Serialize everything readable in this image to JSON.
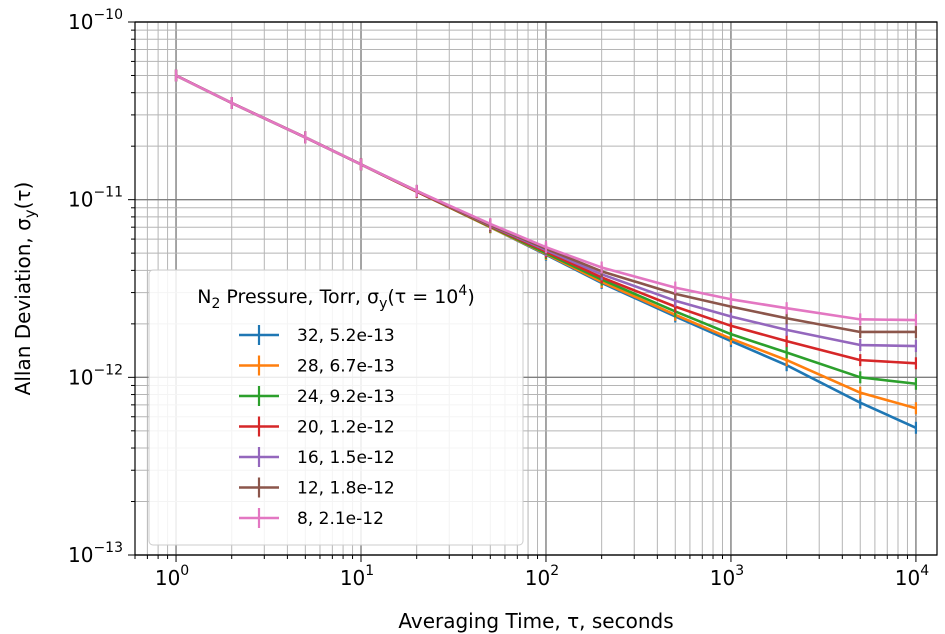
{
  "chart_data": {
    "type": "line",
    "xlabel": "Averaging Time, τ, seconds",
    "ylabel": "Allan Deviation, σy(τ)",
    "x_scale": "log",
    "y_scale": "log",
    "xlim": [
      0.6,
      13000
    ],
    "ylim": [
      1e-13,
      1e-10
    ],
    "grid": "major and minor",
    "x_tick_labels": [
      {
        "base": "10",
        "exp": "0",
        "value": 1
      },
      {
        "base": "10",
        "exp": "1",
        "value": 10
      },
      {
        "base": "10",
        "exp": "2",
        "value": 100
      },
      {
        "base": "10",
        "exp": "3",
        "value": 1000
      },
      {
        "base": "10",
        "exp": "4",
        "value": 10000
      }
    ],
    "y_tick_labels": [
      {
        "base": "10",
        "exp": "−13",
        "value": 1e-13
      },
      {
        "base": "10",
        "exp": "−12",
        "value": 1e-12
      },
      {
        "base": "10",
        "exp": "−11",
        "value": 1e-11
      },
      {
        "base": "10",
        "exp": "−10",
        "value": 1e-10
      }
    ],
    "legend": {
      "placement": "lower-left",
      "title": "N2 Pressure, Torr, σy(τ = 10^4)",
      "title_parts": {
        "n": "N",
        "n_sub": "2",
        "mid": " Pressure, Torr, ",
        "sigma": "σ",
        "sigma_sub": "y",
        "args": "(τ = 10",
        "args_sup": "4",
        "close": ")"
      }
    },
    "x": [
      1,
      2,
      5,
      10,
      20,
      50,
      100,
      200,
      500,
      1000,
      2000,
      5000,
      10000
    ],
    "series": [
      {
        "name": "32, 5.2e-13",
        "color": "#1f77b4",
        "values": [
          5e-11,
          3.5e-11,
          2.24e-11,
          1.58e-11,
          1.11e-11,
          7e-12,
          4.9e-12,
          3.4e-12,
          2.2e-12,
          1.6e-12,
          1.17e-12,
          7.2e-13,
          5.2e-13
        ]
      },
      {
        "name": "28, 6.7e-13",
        "color": "#ff7f0e",
        "values": [
          5e-11,
          3.5e-11,
          2.24e-11,
          1.58e-11,
          1.11e-11,
          7e-12,
          4.95e-12,
          3.45e-12,
          2.25e-12,
          1.65e-12,
          1.25e-12,
          8.2e-13,
          6.7e-13
        ]
      },
      {
        "name": "24, 9.2e-13",
        "color": "#2ca02c",
        "values": [
          5e-11,
          3.5e-11,
          2.24e-11,
          1.58e-11,
          1.11e-11,
          7.05e-12,
          5e-12,
          3.55e-12,
          2.35e-12,
          1.75e-12,
          1.38e-12,
          1e-12,
          9.2e-13
        ]
      },
      {
        "name": "20, 1.2e-12",
        "color": "#d62728",
        "values": [
          5e-11,
          3.5e-11,
          2.24e-11,
          1.58e-11,
          1.11e-11,
          7.1e-12,
          5.1e-12,
          3.65e-12,
          2.5e-12,
          1.95e-12,
          1.6e-12,
          1.25e-12,
          1.2e-12
        ]
      },
      {
        "name": "16, 1.5e-12",
        "color": "#9467bd",
        "values": [
          5e-11,
          3.5e-11,
          2.24e-11,
          1.58e-11,
          1.12e-11,
          7.15e-12,
          5.2e-12,
          3.8e-12,
          2.7e-12,
          2.2e-12,
          1.85e-12,
          1.52e-12,
          1.5e-12
        ]
      },
      {
        "name": "12, 1.8e-12",
        "color": "#8c564b",
        "values": [
          5e-11,
          3.5e-11,
          2.24e-11,
          1.58e-11,
          1.12e-11,
          7.2e-12,
          5.3e-12,
          3.95e-12,
          2.95e-12,
          2.5e-12,
          2.15e-12,
          1.8e-12,
          1.8e-12
        ]
      },
      {
        "name": " 8, 2.1e-12",
        "color": "#e377c2",
        "values": [
          5e-11,
          3.5e-11,
          2.24e-11,
          1.58e-11,
          1.12e-11,
          7.3e-12,
          5.4e-12,
          4.15e-12,
          3.2e-12,
          2.75e-12,
          2.45e-12,
          2.12e-12,
          2.1e-12
        ]
      }
    ]
  }
}
